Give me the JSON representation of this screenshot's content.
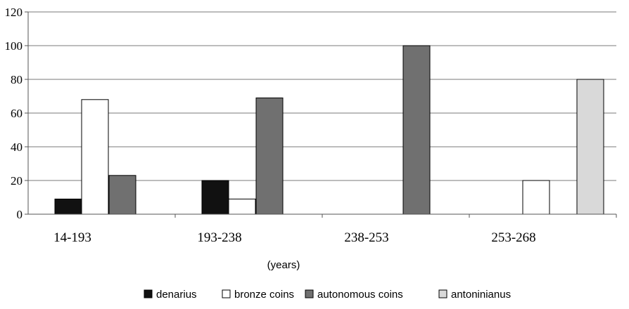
{
  "chart_data": {
    "type": "bar",
    "categories": [
      "14-193",
      "193-238",
      "238-253",
      "253-268"
    ],
    "xlabel": "(years)",
    "ylabel": "",
    "ylim": [
      0,
      120
    ],
    "yticks": [
      0,
      20,
      40,
      60,
      80,
      100,
      120
    ],
    "grid": true,
    "legend_position": "bottom",
    "series": [
      {
        "name": "denarius",
        "color": "#111111",
        "values": [
          9,
          20,
          0,
          0
        ]
      },
      {
        "name": "bronze coins",
        "color": "#ffffff",
        "values": [
          68,
          9,
          0,
          20
        ]
      },
      {
        "name": "autonomous coins",
        "color": "#707070",
        "values": [
          23,
          69,
          100,
          0
        ]
      },
      {
        "name": "antoninianus",
        "color": "#d9d9d9",
        "values": [
          0,
          0,
          0,
          80
        ]
      }
    ]
  }
}
